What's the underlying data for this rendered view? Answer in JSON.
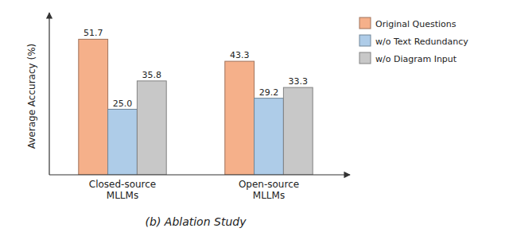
{
  "chart_data": {
    "type": "bar",
    "subtitle": "(b)  Ablation Study",
    "y_label": "Average Accuracy (%)",
    "categories": [
      "Closed-source\nMLLMs",
      "Open-source\nMLLMs"
    ],
    "series": [
      {
        "name": "Original Questions",
        "color": "#F5B08A",
        "values": [
          51.7,
          43.3
        ],
        "value_labels": [
          "51.7",
          "43.3"
        ]
      },
      {
        "name": "w/o Text Redundancy",
        "color": "#AECCE8",
        "values": [
          25.0,
          29.2
        ],
        "value_labels": [
          "25.0",
          "29.2"
        ]
      },
      {
        "name": "w/o Diagram Input",
        "color": "#C8C8C8",
        "values": [
          35.8,
          33.3
        ],
        "value_labels": [
          "35.8",
          "33.3"
        ]
      }
    ],
    "ylim": [
      0,
      60
    ],
    "grid": false,
    "legend": "upper right",
    "data_labels": true,
    "tick_labels": "x"
  }
}
